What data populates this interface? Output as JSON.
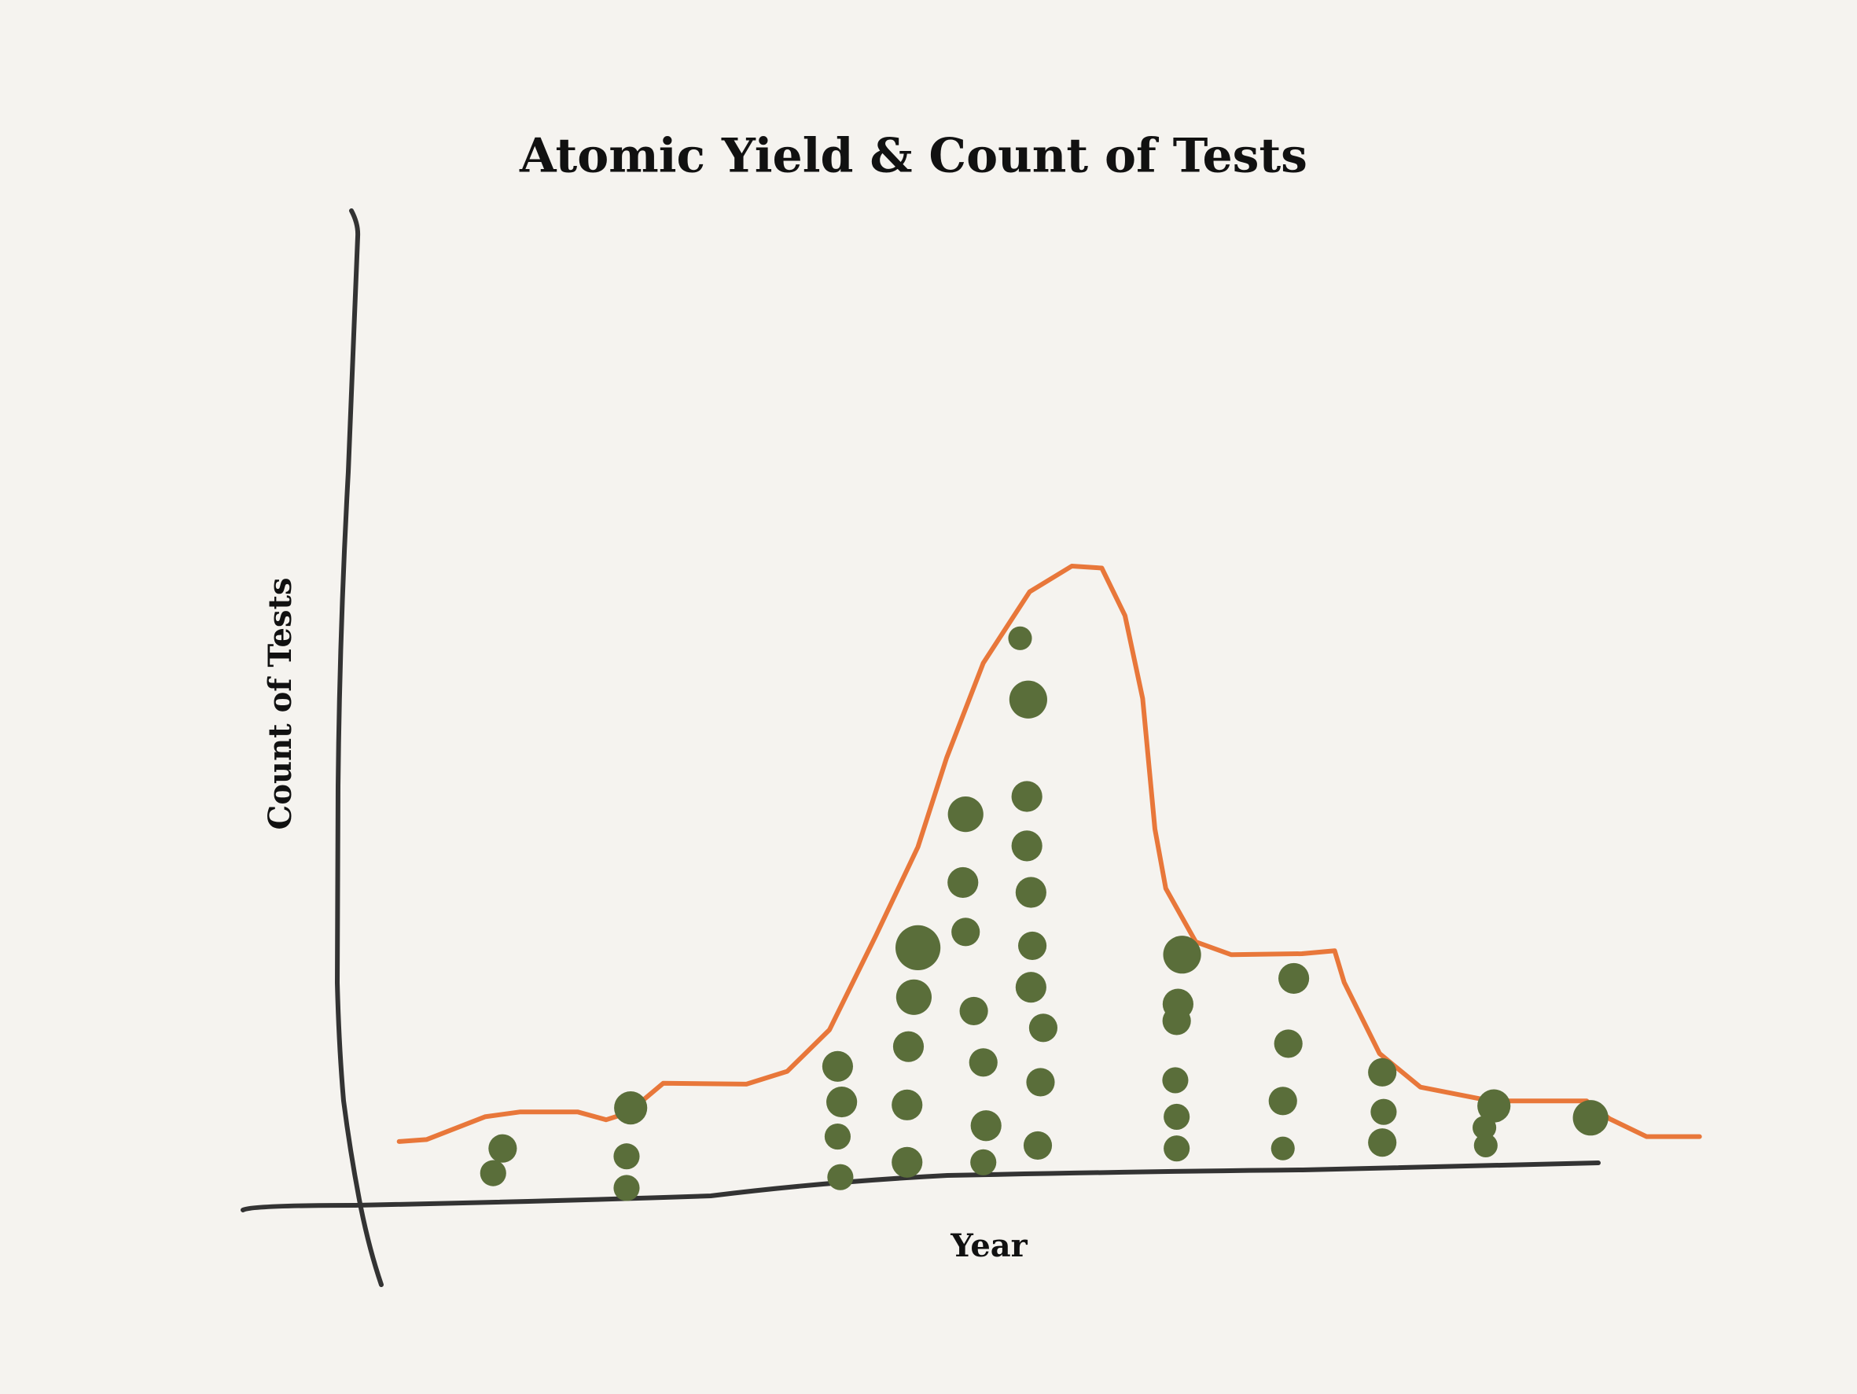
{
  "chart_data": {
    "type": "bubble",
    "title": "Atomic Yield & Count of Tests",
    "x_label": "Year",
    "y_label": "Count of Tests",
    "xlim": [
      0,
      100
    ],
    "ylim": [
      0,
      100
    ],
    "points": {
      "color": "#5a6e3a",
      "x": [
        11.7,
        11.0,
        21.1,
        20.8,
        20.8,
        36.3,
        36.6,
        36.3,
        36.5,
        42.2,
        41.9,
        41.5,
        41.4,
        41.4,
        45.7,
        45.5,
        45.7,
        46.3,
        47.0,
        47.2,
        47.0,
        49.7,
        50.3,
        50.2,
        50.2,
        50.5,
        50.6,
        50.5,
        51.4,
        51.2,
        51.0,
        61.6,
        61.3,
        61.2,
        61.1,
        61.2,
        61.2,
        69.8,
        69.4,
        69.0,
        69.0,
        76.3,
        76.4,
        76.3,
        84.5,
        83.8,
        83.9,
        91.6
      ],
      "y": [
        5.4,
        2.9,
        9.5,
        4.6,
        1.4,
        13.7,
        10.1,
        6.6,
        2.5,
        25.7,
        20.7,
        15.7,
        9.8,
        4.0,
        39.2,
        32.3,
        27.3,
        19.3,
        14.1,
        7.7,
        4.0,
        57.0,
        50.8,
        41.0,
        36.0,
        31.3,
        25.9,
        21.7,
        17.6,
        12.1,
        5.7,
        25.0,
        20.0,
        18.3,
        12.3,
        8.6,
        5.4,
        22.6,
        16.0,
        10.2,
        5.4,
        13.1,
        9.1,
        6.0,
        9.7,
        7.5,
        5.7,
        8.5
      ],
      "sizes": [
        12,
        11,
        14,
        11,
        11,
        13,
        13,
        11,
        11,
        19,
        15,
        13,
        13,
        13,
        15,
        13,
        12,
        12,
        12,
        13,
        11,
        10,
        16,
        13,
        13,
        13,
        12,
        13,
        12,
        12,
        12,
        16,
        13,
        12,
        11,
        11,
        11,
        13,
        12,
        12,
        10,
        12,
        11,
        12,
        14,
        10,
        10,
        15
      ]
    },
    "line": {
      "color": "#e8773a",
      "x": [
        4.1,
        6.1,
        10.4,
        13.0,
        17.2,
        19.3,
        20.9,
        23.5,
        29.6,
        32.6,
        35.7,
        39.1,
        42.2,
        44.3,
        47.0,
        50.4,
        53.5,
        55.7,
        57.4,
        58.7,
        59.6,
        60.4,
        62.6,
        65.2,
        70.4,
        72.8,
        73.5,
        76.1,
        79.1,
        84.3,
        91.3,
        93.0,
        95.7,
        99.6
      ],
      "y": [
        6.1,
        6.3,
        8.6,
        9.1,
        9.1,
        8.3,
        9.0,
        12.0,
        11.9,
        13.2,
        17.4,
        26.9,
        35.9,
        44.9,
        54.5,
        61.7,
        64.3,
        64.1,
        59.3,
        50.9,
        37.7,
        31.7,
        26.3,
        25.0,
        25.1,
        25.4,
        22.2,
        15.0,
        11.6,
        10.2,
        10.2,
        8.4,
        6.6,
        6.6
      ]
    }
  }
}
